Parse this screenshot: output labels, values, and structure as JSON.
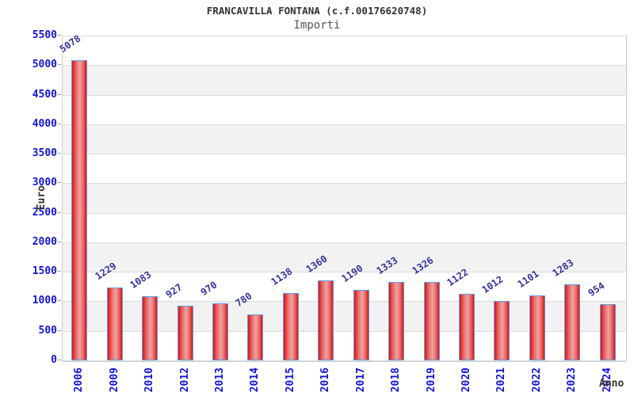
{
  "header": {
    "title": "FRANCAVILLA FONTANA (c.f.00176620748)",
    "subtitle": "Importi"
  },
  "chart_data": {
    "type": "bar",
    "title": "FRANCAVILLA FONTANA (c.f.00176620748)",
    "subtitle": "Importi",
    "xlabel": "Anno",
    "ylabel": "Euro",
    "categories": [
      "2006",
      "2009",
      "2010",
      "2012",
      "2013",
      "2014",
      "2015",
      "2016",
      "2017",
      "2018",
      "2019",
      "2020",
      "2021",
      "2022",
      "2023",
      "2024"
    ],
    "values": [
      5078,
      1229,
      1083,
      927,
      970,
      780,
      1138,
      1360,
      1190,
      1333,
      1326,
      1122,
      1012,
      1101,
      1283,
      954
    ],
    "ylim": [
      0,
      5500
    ],
    "ytick_step": 500,
    "grid": true,
    "legend": false,
    "bands_alternating": true
  },
  "colors": {
    "axis_label": "#1414cc",
    "value_label": "#333399",
    "bar_edge": "#dd1111",
    "bar_center": "#eda4a4",
    "bar_border": "#5c9ce5",
    "band": "#f2f2f2",
    "gridline": "#dcdcdc",
    "plot_border": "#cccccc",
    "title": "#333333",
    "subtitle": "#555555"
  }
}
